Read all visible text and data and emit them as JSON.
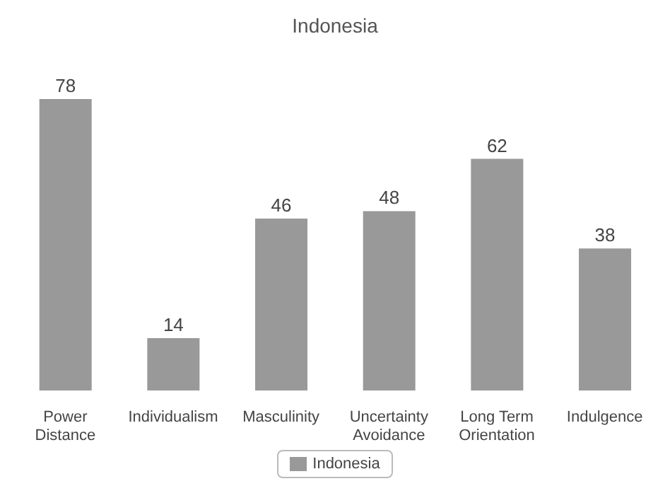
{
  "chart_data": {
    "type": "bar",
    "title": "Indonesia",
    "categories": [
      "Power Distance",
      "Individualism",
      "Masculinity",
      "Uncertainty Avoidance",
      "Long Term Orientation",
      "Indulgence"
    ],
    "series": [
      {
        "name": "Indonesia",
        "color": "#999999",
        "values": [
          78,
          14,
          46,
          48,
          62,
          38
        ]
      }
    ],
    "data_labels": true,
    "grid": false,
    "legend": "bottom"
  }
}
